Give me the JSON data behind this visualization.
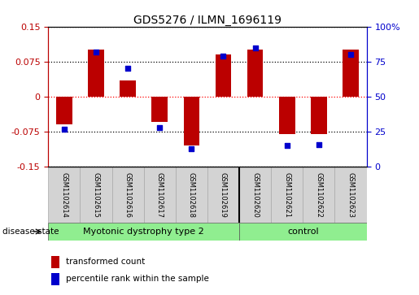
{
  "title": "GDS5276 / ILMN_1696119",
  "samples": [
    "GSM1102614",
    "GSM1102615",
    "GSM1102616",
    "GSM1102617",
    "GSM1102618",
    "GSM1102619",
    "GSM1102620",
    "GSM1102621",
    "GSM1102622",
    "GSM1102623"
  ],
  "red_values": [
    -0.06,
    0.1,
    0.035,
    -0.055,
    -0.105,
    0.09,
    0.1,
    -0.08,
    -0.08,
    0.1
  ],
  "blue_values": [
    27,
    82,
    70,
    28,
    13,
    79,
    85,
    15,
    16,
    80
  ],
  "groups": [
    {
      "label": "Myotonic dystrophy type 2",
      "indices": [
        0,
        1,
        2,
        3,
        4,
        5
      ],
      "color": "#90EE90"
    },
    {
      "label": "control",
      "indices": [
        6,
        7,
        8,
        9
      ],
      "color": "#90EE90"
    }
  ],
  "ylim_left": [
    -0.15,
    0.15
  ],
  "ylim_right": [
    0,
    100
  ],
  "yticks_left": [
    -0.15,
    -0.075,
    0,
    0.075,
    0.15
  ],
  "yticks_right": [
    0,
    25,
    50,
    75,
    100
  ],
  "red_color": "#bb0000",
  "blue_color": "#0000cc",
  "bar_width": 0.5,
  "dot_size": 18,
  "legend_red": "transformed count",
  "legend_blue": "percentile rank within the sample",
  "disease_state_label": "disease state",
  "hline_colors": {
    "0.15": "black",
    "0.075": "black",
    "0": "red",
    "-0.075": "black",
    "-0.15": "black"
  },
  "background_color": "#ffffff",
  "plot_bg": "#ffffff",
  "spine_color": "#000000"
}
